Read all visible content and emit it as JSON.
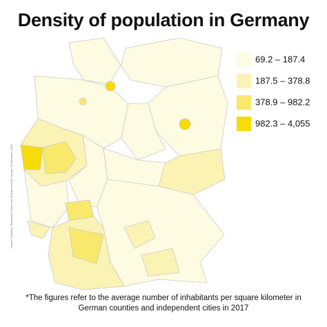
{
  "title": "Density of population in Germany",
  "legend": [
    {
      "label": "69.2 – 187.4",
      "color": "#fdfbe1"
    },
    {
      "label": "187.5 – 378.8",
      "color": "#fbf3b3"
    },
    {
      "label": "378.9 – 982.2",
      "color": "#f8e86c"
    },
    {
      "label": "982.3 – 4,055",
      "color": "#f5dc0a"
    }
  ],
  "source": "Source: Destatis / Statistische Ämter des Bundes und der Länder, Deutschland, 2018",
  "footnote": "*The figures refer to the average number of inhabitants per square kilometer in German counties and independent cities in 2017"
}
